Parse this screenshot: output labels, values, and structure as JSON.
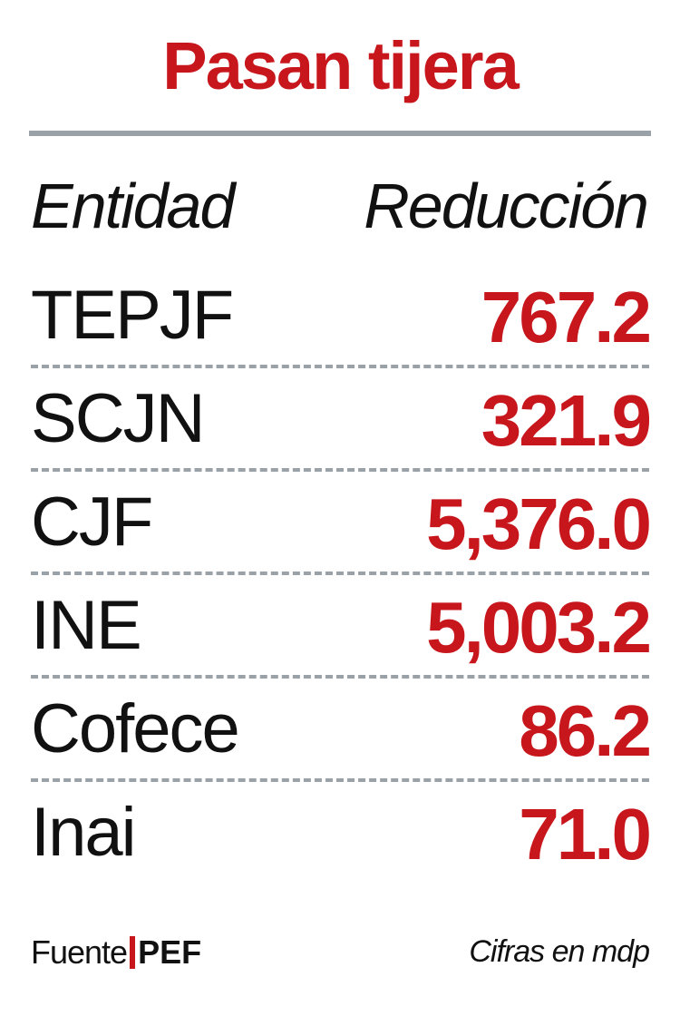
{
  "chart_data": {
    "type": "table",
    "title": "Pasan tijera",
    "columns": [
      "Entidad",
      "Reducción"
    ],
    "rows": [
      {
        "entity": "TEPJF",
        "value": 767.2,
        "display": "767.2"
      },
      {
        "entity": "SCJN",
        "value": 321.9,
        "display": "321.9"
      },
      {
        "entity": "CJF",
        "value": 5376.0,
        "display": "5,376.0"
      },
      {
        "entity": "INE",
        "value": 5003.2,
        "display": "5,003.2"
      },
      {
        "entity": "Cofece",
        "value": 86.2,
        "display": "86.2"
      },
      {
        "entity": "Inai",
        "value": 71.0,
        "display": "71.0"
      }
    ],
    "source_label": "Fuente",
    "source": "PEF",
    "units_note": "Cifras en mdp"
  },
  "colors": {
    "accent": "#c8161d",
    "rule": "#9aa2a8",
    "text": "#111111"
  }
}
